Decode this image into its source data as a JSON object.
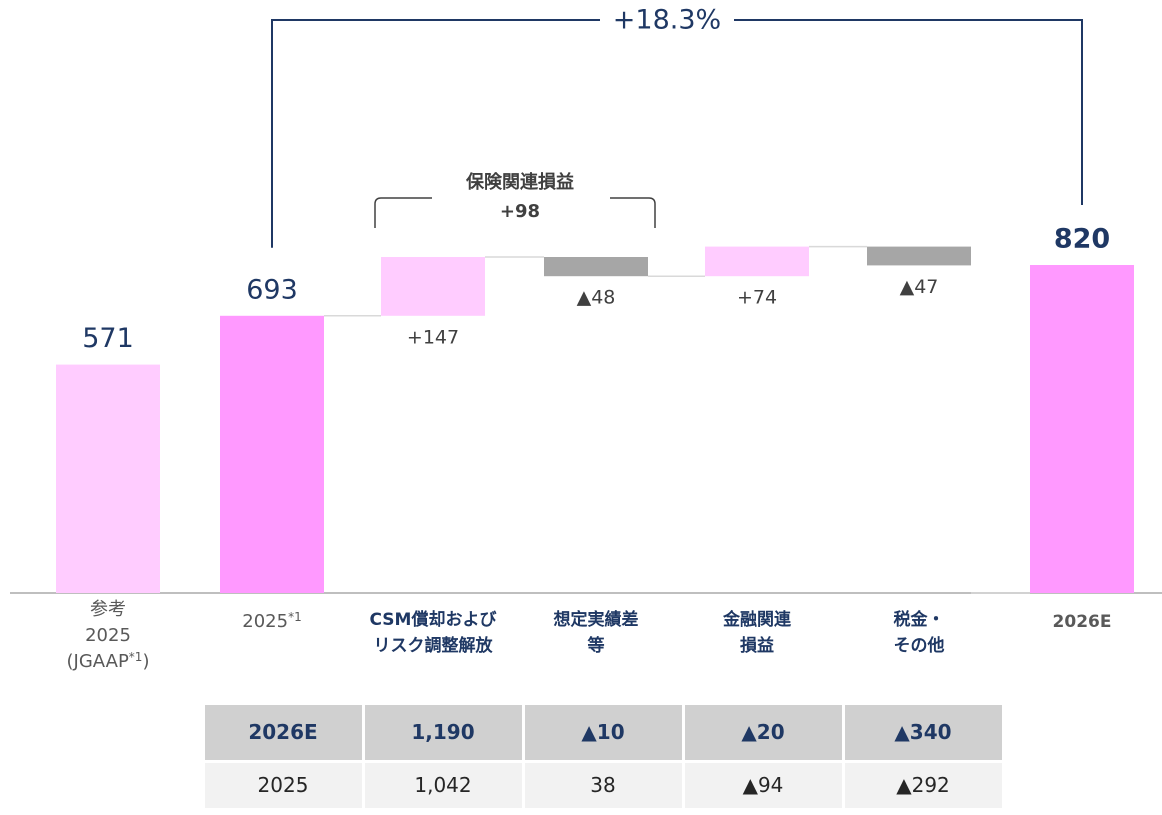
{
  "chart_data": {
    "type": "waterfall",
    "categories": [
      [
        "参考",
        "2025",
        "(JGAAP*1)"
      ],
      [
        "2025*1"
      ],
      [
        "CSM償却および",
        "リスク調整解放"
      ],
      [
        "想定実績差",
        "等"
      ],
      [
        "金融関連",
        "損益"
      ],
      [
        "税金・",
        "その他"
      ],
      [
        "2026E"
      ]
    ],
    "values": [
      571,
      693,
      147,
      -48,
      74,
      -47,
      820
    ],
    "value_labels": [
      "571",
      "693",
      "+147",
      "▲48",
      "+74",
      "▲47",
      "820"
    ],
    "colors": [
      "#ffccff",
      "#ff99ff",
      "#ffccff",
      "#a6a6a6",
      "#ffccff",
      "#a6a6a6",
      "#ff99ff"
    ],
    "annotations": [
      {
        "text": [
          "+18.3%"
        ]
      },
      {
        "text": [
          "保険関連損益",
          "+98"
        ]
      }
    ]
  },
  "table": {
    "rows": [
      [
        "2026E",
        "1,190",
        "▲10",
        "▲20",
        "▲340"
      ],
      [
        "2025",
        "1,042",
        "38",
        "▲94",
        "▲292"
      ]
    ]
  }
}
